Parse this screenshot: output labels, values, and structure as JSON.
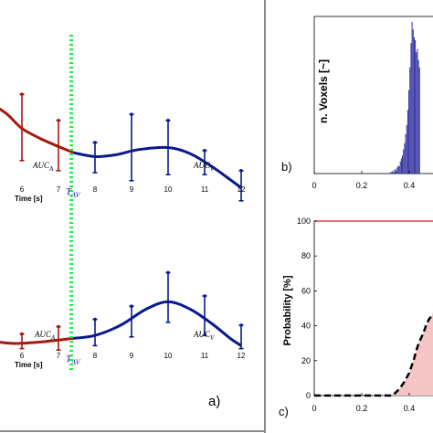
{
  "colors": {
    "red": "#a31a10",
    "blue": "#0a1a8c",
    "tav": "#22e84a",
    "hist": "#2f2ea0",
    "prob_line": "#e04040",
    "fill": "#f5c4c4",
    "border": "#8a8a8a"
  },
  "panel_a": {
    "label": "a)",
    "tav_label": "T",
    "tav_sub": "AV",
    "auc_a": "AUC",
    "auc_a_sub": "A",
    "auc_v": "AUC",
    "auc_v_sub": "V",
    "xlabel": "Time [s]"
  },
  "panel_b": {
    "label": "b)",
    "ylabel": "n. Voxels [~]"
  },
  "panel_c": {
    "label": "c)",
    "ylabel": "Probability [%]"
  },
  "chart_data": [
    {
      "type": "line",
      "panel": "a-top",
      "xlabel": "Time [s]",
      "tick_labels": [
        "6",
        "7",
        "8",
        "9",
        "10",
        "11",
        "12"
      ],
      "xlim": [
        5.2,
        12.3
      ],
      "tav_x": 7.35,
      "series": [
        {
          "name": "AUC_A",
          "color": "#a31a10",
          "curve": [
            [
              5.2,
              0.78
            ],
            [
              5.6,
              0.68
            ],
            [
              6.0,
              0.54
            ],
            [
              6.5,
              0.44
            ],
            [
              7.0,
              0.36
            ],
            [
              7.4,
              0.3
            ]
          ],
          "points": [
            {
              "x": 6.0,
              "lo": 0.22,
              "hi": 0.88
            },
            {
              "x": 7.0,
              "lo": 0.12,
              "hi": 0.62
            }
          ]
        },
        {
          "name": "AUC_V",
          "color": "#0a1a8c",
          "curve": [
            [
              7.4,
              0.3
            ],
            [
              8.0,
              0.26
            ],
            [
              8.6,
              0.28
            ],
            [
              9.2,
              0.33
            ],
            [
              10.0,
              0.35
            ],
            [
              10.6,
              0.29
            ],
            [
              11.2,
              0.16
            ],
            [
              11.7,
              0.03
            ],
            [
              12.0,
              -0.05
            ]
          ],
          "points": [
            {
              "x": 8.0,
              "lo": 0.1,
              "hi": 0.4
            },
            {
              "x": 9.0,
              "lo": 0.02,
              "hi": 0.68
            },
            {
              "x": 10.0,
              "lo": 0.08,
              "hi": 0.62
            },
            {
              "x": 11.0,
              "lo": 0.08,
              "hi": 0.32
            },
            {
              "x": 12.0,
              "lo": -0.18,
              "hi": 0.12
            }
          ]
        }
      ]
    },
    {
      "type": "line",
      "panel": "a-bottom",
      "xlabel": "Time [s]",
      "tick_labels": [
        "6",
        "7",
        "8",
        "9",
        "10",
        "11",
        "12"
      ],
      "xlim": [
        5.2,
        12.3
      ],
      "tav_x": 7.35,
      "series": [
        {
          "name": "AUC_A",
          "color": "#a31a10",
          "curve": [
            [
              5.2,
              0.08
            ],
            [
              5.8,
              0.05
            ],
            [
              6.5,
              0.07
            ],
            [
              7.4,
              0.12
            ]
          ],
          "points": [
            {
              "x": 6.0,
              "lo": -0.02,
              "hi": 0.18
            },
            {
              "x": 7.0,
              "lo": -0.04,
              "hi": 0.28
            }
          ]
        },
        {
          "name": "AUC_V",
          "color": "#0a1a8c",
          "curve": [
            [
              7.4,
              0.12
            ],
            [
              8.0,
              0.16
            ],
            [
              8.7,
              0.3
            ],
            [
              9.4,
              0.52
            ],
            [
              10.0,
              0.62
            ],
            [
              10.6,
              0.52
            ],
            [
              11.2,
              0.32
            ],
            [
              11.7,
              0.12
            ],
            [
              12.0,
              0.02
            ]
          ],
          "points": [
            {
              "x": 8.0,
              "lo": 0.02,
              "hi": 0.38
            },
            {
              "x": 9.0,
              "lo": 0.14,
              "hi": 0.56
            },
            {
              "x": 10.0,
              "lo": 0.34,
              "hi": 1.02
            },
            {
              "x": 11.0,
              "lo": 0.16,
              "hi": 0.7
            },
            {
              "x": 12.0,
              "lo": -0.02,
              "hi": 0.3
            }
          ]
        }
      ]
    },
    {
      "type": "bar",
      "panel": "b",
      "ylabel": "n. Voxels [~]",
      "x_ticks": [
        "0",
        "0.2",
        "0.4"
      ],
      "xlim": [
        0,
        0.5
      ],
      "bin_start": 0.32,
      "bin_width": 0.0045,
      "values": [
        0.01,
        0.01,
        0.02,
        0.01,
        0.03,
        0.02,
        0.04,
        0.05,
        0.05,
        0.08,
        0.1,
        0.12,
        0.16,
        0.2,
        0.26,
        0.32,
        0.42,
        0.55,
        0.7,
        0.86,
        1.0,
        0.95,
        0.9,
        0.88,
        0.8,
        0.82,
        0.75,
        0.7
      ]
    },
    {
      "type": "area",
      "panel": "c",
      "ylabel": "Probability [%]",
      "x_ticks": [
        "0",
        "0.2",
        "0.4"
      ],
      "y_ticks": [
        "0",
        "20",
        "40",
        "60",
        "80",
        "100"
      ],
      "xlim": [
        0,
        0.5
      ],
      "ylim": [
        0,
        100
      ],
      "hline": 100,
      "series": [
        {
          "name": "probability",
          "x": [
            0,
            0.33,
            0.36,
            0.38,
            0.4,
            0.41,
            0.42,
            0.43,
            0.44,
            0.45,
            0.46,
            0.47,
            0.48,
            0.49,
            0.5
          ],
          "y": [
            0,
            0,
            4,
            8,
            13,
            17,
            21,
            26,
            30,
            33,
            36,
            40,
            43,
            45,
            47
          ]
        }
      ]
    }
  ]
}
